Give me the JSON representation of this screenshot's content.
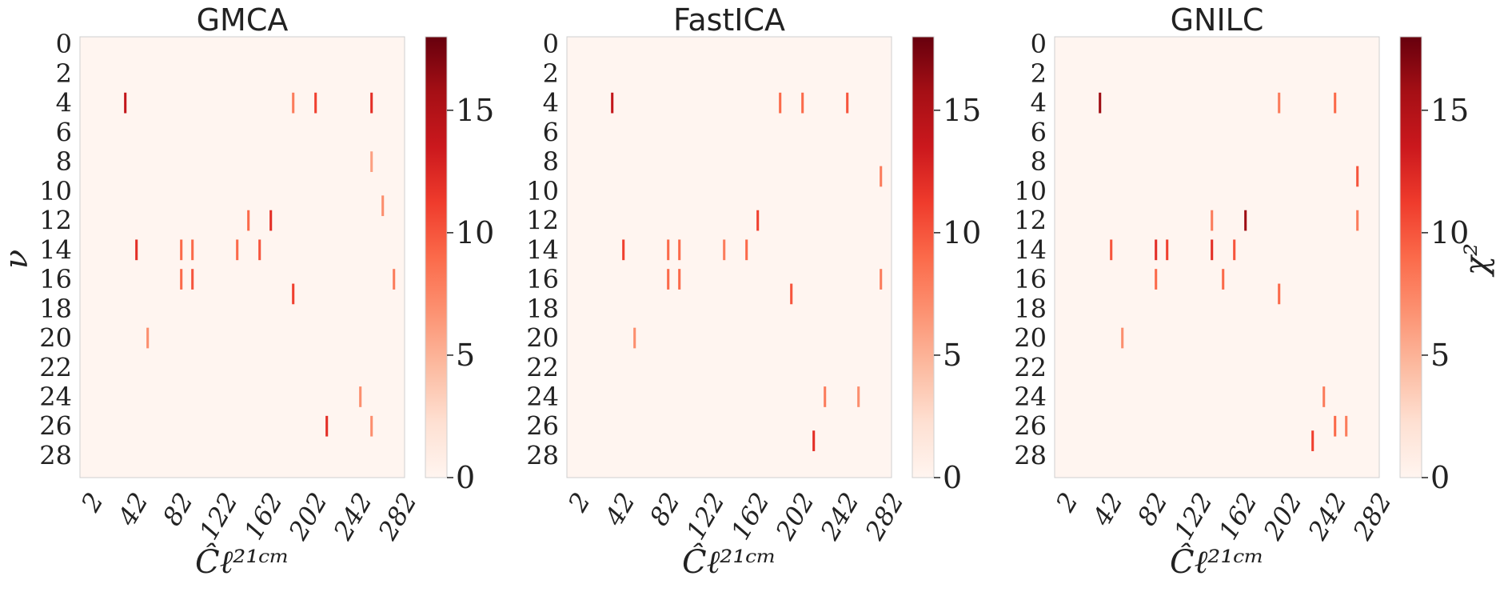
{
  "chart_data": [
    {
      "type": "heatmap",
      "title": "GMCA",
      "xlabel": "Ĉℓ²¹ᶜᵐ",
      "ylabel": "ν",
      "y_ticks": [
        "0",
        "2",
        "4",
        "6",
        "8",
        "10",
        "12",
        "14",
        "16",
        "18",
        "20",
        "22",
        "24",
        "26",
        "28"
      ],
      "x_ticks": [
        "2",
        "42",
        "82",
        "122",
        "162",
        "202",
        "242",
        "282"
      ],
      "colorbar_label": "",
      "colorbar_ticks": [
        "0",
        "5",
        "10",
        "15"
      ],
      "zlim": [
        0,
        18
      ],
      "colormap": "Reds",
      "hotspots": [
        {
          "x": 42,
          "y": 4,
          "value": 14
        },
        {
          "x": 212,
          "y": 4,
          "value": 11
        },
        {
          "x": 262,
          "y": 4,
          "value": 12
        },
        {
          "x": 192,
          "y": 4,
          "value": 8
        },
        {
          "x": 172,
          "y": 12,
          "value": 12
        },
        {
          "x": 152,
          "y": 12,
          "value": 9
        },
        {
          "x": 52,
          "y": 14,
          "value": 12
        },
        {
          "x": 92,
          "y": 14,
          "value": 9
        },
        {
          "x": 102,
          "y": 14,
          "value": 9
        },
        {
          "x": 142,
          "y": 14,
          "value": 9
        },
        {
          "x": 162,
          "y": 14,
          "value": 10
        },
        {
          "x": 92,
          "y": 16,
          "value": 9
        },
        {
          "x": 102,
          "y": 16,
          "value": 10
        },
        {
          "x": 192,
          "y": 17,
          "value": 11
        },
        {
          "x": 62,
          "y": 20,
          "value": 7
        },
        {
          "x": 272,
          "y": 11,
          "value": 7
        },
        {
          "x": 282,
          "y": 16,
          "value": 8
        },
        {
          "x": 222,
          "y": 26,
          "value": 12
        },
        {
          "x": 252,
          "y": 24,
          "value": 7
        },
        {
          "x": 262,
          "y": 26,
          "value": 7
        },
        {
          "x": 262,
          "y": 8,
          "value": 6
        }
      ]
    },
    {
      "type": "heatmap",
      "title": "FastICA",
      "xlabel": "Ĉℓ²¹ᶜᵐ",
      "ylabel": "",
      "y_ticks": [
        "0",
        "2",
        "4",
        "6",
        "8",
        "10",
        "12",
        "14",
        "16",
        "18",
        "20",
        "22",
        "24",
        "26",
        "28"
      ],
      "x_ticks": [
        "2",
        "42",
        "82",
        "122",
        "162",
        "202",
        "242",
        "282"
      ],
      "colorbar_label": "",
      "colorbar_ticks": [
        "0",
        "5",
        "10",
        "15"
      ],
      "zlim": [
        0,
        18
      ],
      "colormap": "Reds",
      "hotspots": [
        {
          "x": 42,
          "y": 4,
          "value": 14
        },
        {
          "x": 192,
          "y": 4,
          "value": 9
        },
        {
          "x": 212,
          "y": 4,
          "value": 9
        },
        {
          "x": 252,
          "y": 4,
          "value": 10
        },
        {
          "x": 172,
          "y": 12,
          "value": 11
        },
        {
          "x": 52,
          "y": 14,
          "value": 11
        },
        {
          "x": 92,
          "y": 14,
          "value": 9
        },
        {
          "x": 102,
          "y": 14,
          "value": 9
        },
        {
          "x": 142,
          "y": 14,
          "value": 8
        },
        {
          "x": 162,
          "y": 14,
          "value": 9
        },
        {
          "x": 92,
          "y": 16,
          "value": 9
        },
        {
          "x": 102,
          "y": 16,
          "value": 9
        },
        {
          "x": 202,
          "y": 17,
          "value": 10
        },
        {
          "x": 62,
          "y": 20,
          "value": 7
        },
        {
          "x": 282,
          "y": 9,
          "value": 8
        },
        {
          "x": 282,
          "y": 16,
          "value": 8
        },
        {
          "x": 222,
          "y": 27,
          "value": 12
        },
        {
          "x": 232,
          "y": 24,
          "value": 8
        },
        {
          "x": 262,
          "y": 24,
          "value": 7
        }
      ]
    },
    {
      "type": "heatmap",
      "title": "GNILC",
      "xlabel": "Ĉℓ²¹ᶜᵐ",
      "ylabel": "",
      "y_ticks": [
        "0",
        "2",
        "4",
        "6",
        "8",
        "10",
        "12",
        "14",
        "16",
        "18",
        "20",
        "22",
        "24",
        "26",
        "28"
      ],
      "x_ticks": [
        "2",
        "42",
        "82",
        "122",
        "162",
        "202",
        "242",
        "282"
      ],
      "colorbar_label": "χ²",
      "colorbar_ticks": [
        "0",
        "5",
        "10",
        "15"
      ],
      "zlim": [
        0,
        18
      ],
      "colormap": "Reds",
      "hotspots": [
        {
          "x": 42,
          "y": 4,
          "value": 16
        },
        {
          "x": 202,
          "y": 4,
          "value": 8
        },
        {
          "x": 252,
          "y": 4,
          "value": 9
        },
        {
          "x": 172,
          "y": 12,
          "value": 16
        },
        {
          "x": 142,
          "y": 12,
          "value": 8
        },
        {
          "x": 52,
          "y": 14,
          "value": 10
        },
        {
          "x": 92,
          "y": 14,
          "value": 12
        },
        {
          "x": 102,
          "y": 14,
          "value": 11
        },
        {
          "x": 142,
          "y": 14,
          "value": 12
        },
        {
          "x": 162,
          "y": 14,
          "value": 10
        },
        {
          "x": 92,
          "y": 16,
          "value": 9
        },
        {
          "x": 152,
          "y": 16,
          "value": 9
        },
        {
          "x": 202,
          "y": 17,
          "value": 9
        },
        {
          "x": 62,
          "y": 20,
          "value": 7
        },
        {
          "x": 272,
          "y": 9,
          "value": 10
        },
        {
          "x": 272,
          "y": 12,
          "value": 8
        },
        {
          "x": 232,
          "y": 27,
          "value": 11
        },
        {
          "x": 242,
          "y": 24,
          "value": 8
        },
        {
          "x": 252,
          "y": 26,
          "value": 9
        },
        {
          "x": 262,
          "y": 26,
          "value": 8
        }
      ]
    }
  ]
}
